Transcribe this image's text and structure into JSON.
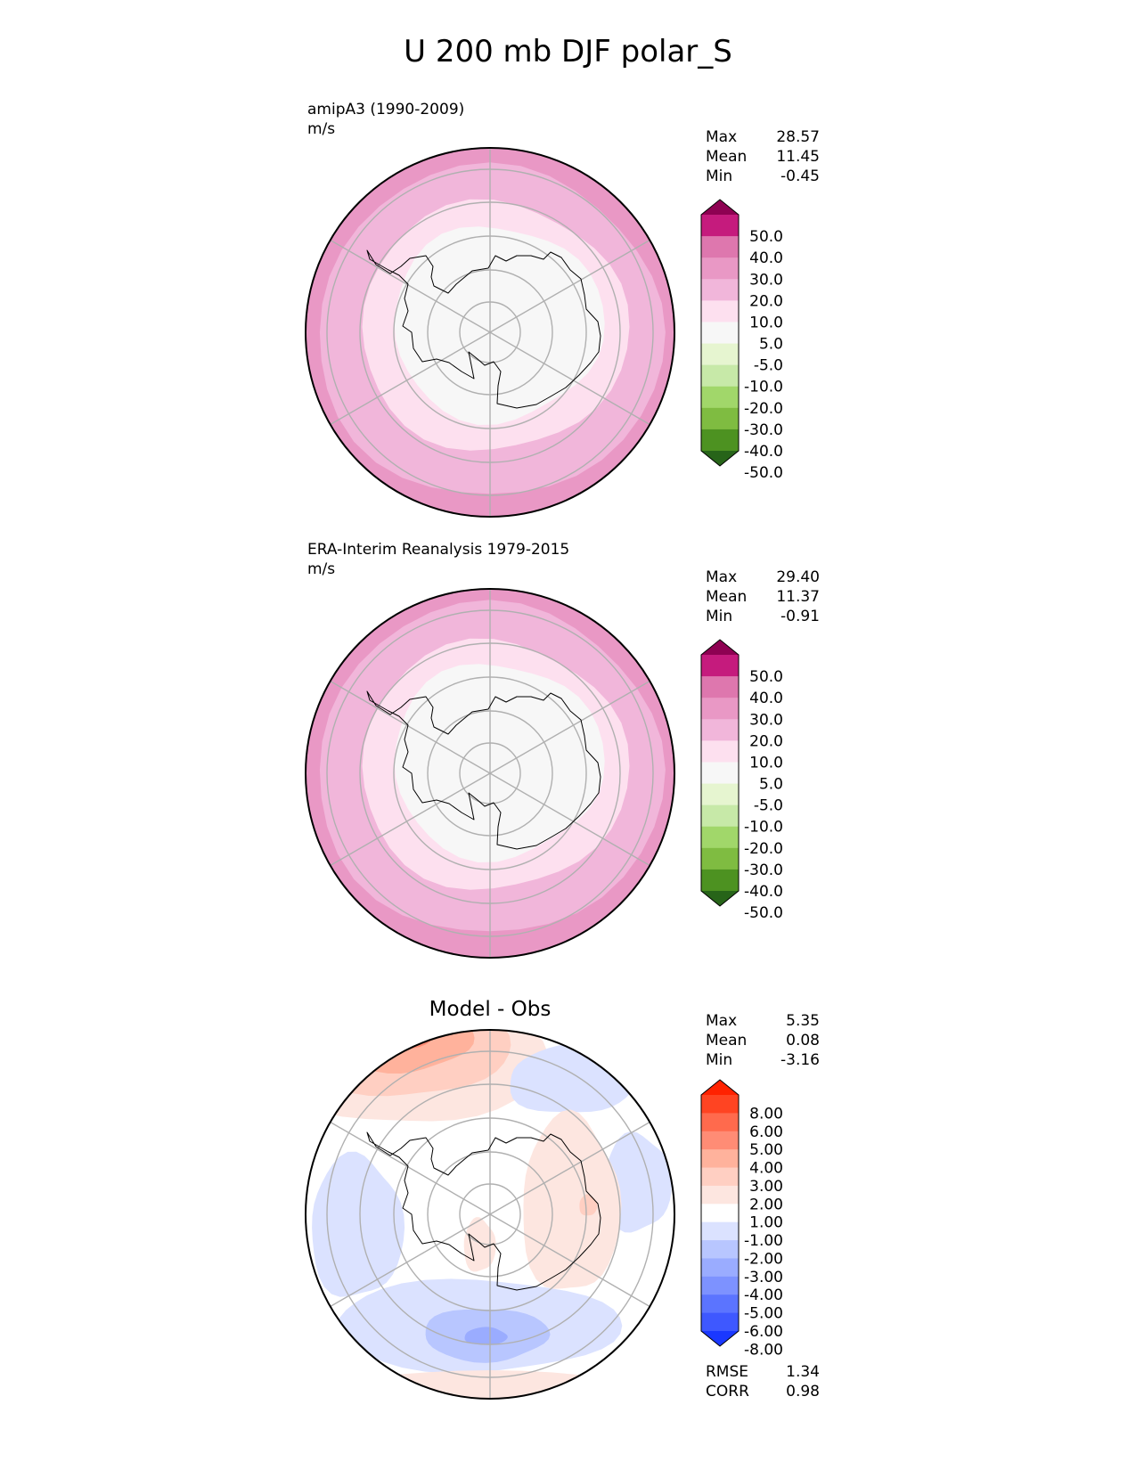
{
  "figure_title": "U 200 mb DJF polar_S",
  "colors": {
    "wind_ramp": [
      "#8e0152",
      "#c51b7d",
      "#de77ae",
      "#e998c5",
      "#f1b6da",
      "#fde0ef",
      "#f7f7f7",
      "#e6f5d0",
      "#c7e9a8",
      "#a1d76a",
      "#7fbc41",
      "#4d9221",
      "#276419"
    ],
    "diff_ramp": [
      "#ff2200",
      "#ff4422",
      "#ff6a4d",
      "#ff8c75",
      "#ffb29c",
      "#ffcfc2",
      "#fde6e0",
      "#ffffff",
      "#dbe2ff",
      "#b8c6ff",
      "#9aacff",
      "#7d92ff",
      "#5b74ff",
      "#3e58ff",
      "#1a38ff"
    ],
    "graticule": "#b0b0b0",
    "coast": "#000000"
  },
  "panels": [
    {
      "id": "model",
      "label_line1": "amipA3 (1990-2009)",
      "label_line2": "m/s",
      "stats": [
        {
          "name": "Max",
          "value": "28.57"
        },
        {
          "name": "Mean",
          "value": "11.45"
        },
        {
          "name": "Min",
          "value": "-0.45"
        }
      ],
      "colorbar_labels": [
        "50.0",
        "40.0",
        "30.0",
        "20.0",
        "10.0",
        "5.0",
        "-5.0",
        "-10.0",
        "-20.0",
        "-30.0",
        "-40.0",
        "-50.0"
      ]
    },
    {
      "id": "obs",
      "label_line1": "ERA-Interim Reanalysis 1979-2015",
      "label_line2": "m/s",
      "stats": [
        {
          "name": "Max",
          "value": "29.40"
        },
        {
          "name": "Mean",
          "value": "11.37"
        },
        {
          "name": "Min",
          "value": "-0.91"
        }
      ],
      "colorbar_labels": [
        "50.0",
        "40.0",
        "30.0",
        "20.0",
        "10.0",
        "5.0",
        "-5.0",
        "-10.0",
        "-20.0",
        "-30.0",
        "-40.0",
        "-50.0"
      ]
    },
    {
      "id": "diff",
      "title": "Model - Obs",
      "stats": [
        {
          "name": "Max",
          "value": "5.35"
        },
        {
          "name": "Mean",
          "value": "0.08"
        },
        {
          "name": "Min",
          "value": "-3.16"
        }
      ],
      "colorbar_labels": [
        "8.00",
        "6.00",
        "5.00",
        "4.00",
        "3.00",
        "2.00",
        "1.00",
        "-1.00",
        "-2.00",
        "-3.00",
        "-4.00",
        "-5.00",
        "-6.00",
        "-8.00"
      ],
      "metrics": [
        {
          "name": "RMSE",
          "value": "1.34"
        },
        {
          "name": "CORR",
          "value": "0.98"
        }
      ]
    }
  ],
  "chart_data": [
    {
      "type": "heatmap",
      "title": "amipA3 (1990-2009)",
      "units": "m/s",
      "projection": "south polar stereographic",
      "levels": [
        -50,
        -40,
        -30,
        -20,
        -10,
        -5,
        5,
        10,
        20,
        30,
        40,
        50
      ],
      "max": 28.57,
      "mean": 11.45,
      "min": -0.45
    },
    {
      "type": "heatmap",
      "title": "ERA-Interim Reanalysis 1979-2015",
      "units": "m/s",
      "projection": "south polar stereographic",
      "levels": [
        -50,
        -40,
        -30,
        -20,
        -10,
        -5,
        5,
        10,
        20,
        30,
        40,
        50
      ],
      "max": 29.4,
      "mean": 11.37,
      "min": -0.91
    },
    {
      "type": "heatmap",
      "title": "Model - Obs",
      "projection": "south polar stereographic",
      "levels": [
        -8,
        -6,
        -5,
        -4,
        -3,
        -2,
        -1,
        1,
        2,
        3,
        4,
        5,
        6,
        8
      ],
      "max": 5.35,
      "mean": 0.08,
      "min": -3.16,
      "rmse": 1.34,
      "corr": 0.98
    }
  ]
}
